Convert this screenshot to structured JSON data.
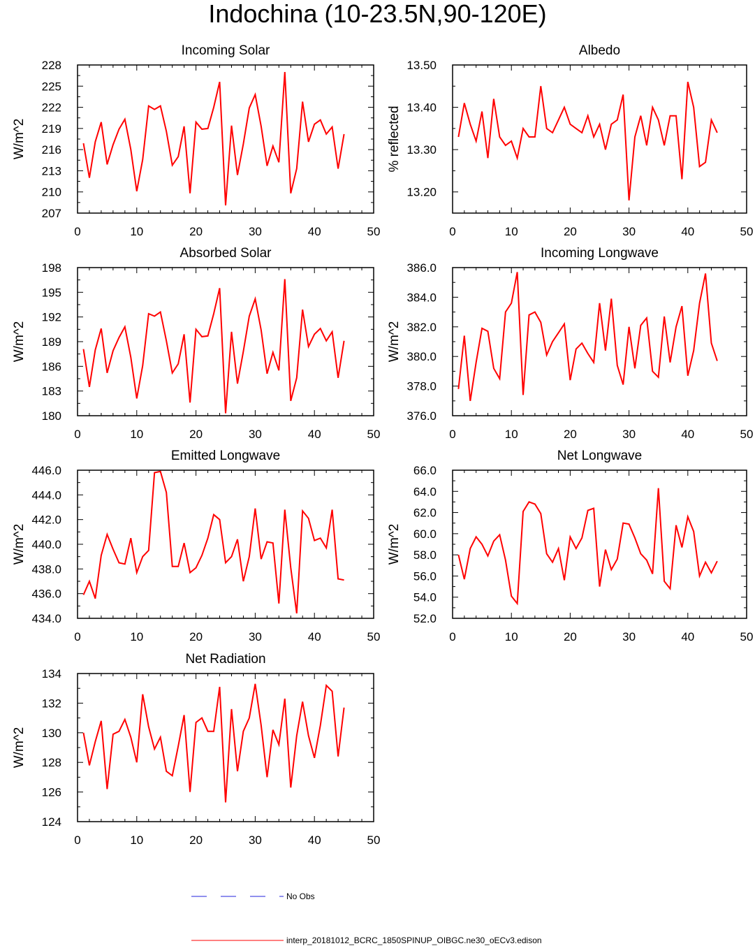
{
  "figure": {
    "title": "Indochina (10-23.5N,90-120E)"
  },
  "legend": [
    {
      "label": "No Obs",
      "color": "#0000ff",
      "dash": true
    },
    {
      "label": "interp_20181012_BCRC_1850SPINUP_OIBGC.ne30_oECv3.edison",
      "color": "#ff0000",
      "dash": false
    }
  ],
  "chart_data": [
    {
      "type": "line",
      "title": "Incoming Solar",
      "ylabel": "W/m^2",
      "xlim": [
        0,
        50
      ],
      "ylim": [
        207,
        228
      ],
      "xticks": [
        "0",
        "10",
        "20",
        "30",
        "40",
        "50"
      ],
      "yticks": [
        "207",
        "210",
        "213",
        "216",
        "219",
        "222",
        "225",
        "228"
      ],
      "series": [
        {
          "color": "#ff0000",
          "x_start": 1,
          "values": [
            216.9,
            212.0,
            217.1,
            219.9,
            213.9,
            216.7,
            218.9,
            220.3,
            216.0,
            210.1,
            214.6,
            222.2,
            221.7,
            222.2,
            218.6,
            213.8,
            215.0,
            219.3,
            209.8,
            219.9,
            218.9,
            219.0,
            222.0,
            225.6,
            208.1,
            219.4,
            212.4,
            216.8,
            221.9,
            223.8,
            219.3,
            213.7,
            216.5,
            214.2,
            227.0,
            209.8,
            213.3,
            222.8,
            217.1,
            219.6,
            220.2,
            218.2,
            219.2,
            213.3,
            218.2
          ]
        }
      ]
    },
    {
      "type": "line",
      "title": "Albedo",
      "ylabel": "% reflected",
      "xlim": [
        0,
        50
      ],
      "ylim": [
        13.15,
        13.5
      ],
      "xticks": [
        "0",
        "10",
        "20",
        "30",
        "40",
        "50"
      ],
      "yticks": [
        "13.20",
        "13.30",
        "13.40",
        "13.50"
      ],
      "series": [
        {
          "color": "#ff0000",
          "x_start": 1,
          "values": [
            13.33,
            13.41,
            13.36,
            13.32,
            13.39,
            13.28,
            13.42,
            13.33,
            13.31,
            13.32,
            13.28,
            13.35,
            13.33,
            13.33,
            13.45,
            13.35,
            13.34,
            13.37,
            13.4,
            13.36,
            13.35,
            13.34,
            13.38,
            13.33,
            13.36,
            13.3,
            13.36,
            13.37,
            13.43,
            13.18,
            13.33,
            13.38,
            13.31,
            13.4,
            13.37,
            13.31,
            13.38,
            13.38,
            13.23,
            13.46,
            13.4,
            13.26,
            13.27,
            13.37,
            13.34
          ]
        }
      ]
    },
    {
      "type": "line",
      "title": "Absorbed Solar",
      "ylabel": "W/m^2",
      "xlim": [
        0,
        50
      ],
      "ylim": [
        180,
        198
      ],
      "xticks": [
        "0",
        "10",
        "20",
        "30",
        "40",
        "50"
      ],
      "yticks": [
        "180",
        "183",
        "186",
        "189",
        "192",
        "195",
        "198"
      ],
      "series": [
        {
          "color": "#ff0000",
          "x_start": 1,
          "values": [
            188.1,
            183.5,
            188.0,
            190.6,
            185.2,
            187.9,
            189.5,
            190.8,
            187.1,
            182.1,
            186.1,
            192.4,
            192.1,
            192.6,
            189.1,
            185.2,
            186.3,
            189.9,
            181.6,
            190.5,
            189.6,
            189.7,
            192.4,
            195.5,
            180.3,
            190.2,
            183.9,
            187.8,
            192.1,
            194.2,
            190.4,
            185.1,
            187.7,
            185.5,
            196.6,
            181.8,
            184.6,
            192.9,
            188.4,
            189.9,
            190.6,
            189.1,
            190.2,
            184.6,
            189.1
          ]
        }
      ]
    },
    {
      "type": "line",
      "title": "Incoming Longwave",
      "ylabel": "W/m^2",
      "xlim": [
        0,
        50
      ],
      "ylim": [
        376.0,
        386.0
      ],
      "xticks": [
        "0",
        "10",
        "20",
        "30",
        "40",
        "50"
      ],
      "yticks": [
        "376.0",
        "378.0",
        "380.0",
        "382.0",
        "384.0",
        "386.0"
      ],
      "series": [
        {
          "color": "#ff0000",
          "x_start": 1,
          "values": [
            377.8,
            381.4,
            377.0,
            379.6,
            381.9,
            381.7,
            379.2,
            378.5,
            383.0,
            383.6,
            385.7,
            377.4,
            382.8,
            383.0,
            382.3,
            380.1,
            381.0,
            381.6,
            382.2,
            378.4,
            380.5,
            380.9,
            380.2,
            379.6,
            383.6,
            380.4,
            383.9,
            379.4,
            378.1,
            382.0,
            379.2,
            382.1,
            382.6,
            379.0,
            378.6,
            382.7,
            379.6,
            382.0,
            383.4,
            378.7,
            380.4,
            383.6,
            385.6,
            380.9,
            379.7
          ]
        }
      ]
    },
    {
      "type": "line",
      "title": "Emitted Longwave",
      "ylabel": "W/m^2",
      "xlim": [
        0,
        50
      ],
      "ylim": [
        434.0,
        446.0
      ],
      "xticks": [
        "0",
        "10",
        "20",
        "30",
        "40",
        "50"
      ],
      "yticks": [
        "434.0",
        "436.0",
        "438.0",
        "440.0",
        "442.0",
        "444.0",
        "446.0"
      ],
      "series": [
        {
          "color": "#ff0000",
          "x_start": 1,
          "values": [
            435.9,
            437.0,
            435.6,
            439.1,
            440.8,
            439.6,
            438.5,
            438.4,
            440.5,
            437.7,
            439.0,
            439.5,
            445.8,
            445.9,
            444.2,
            438.2,
            438.2,
            440.1,
            437.7,
            438.1,
            439.1,
            440.5,
            442.4,
            442.0,
            438.5,
            439.0,
            440.4,
            437.0,
            439.0,
            442.9,
            438.8,
            440.2,
            440.1,
            435.2,
            442.8,
            438.1,
            434.4,
            442.7,
            442.1,
            440.3,
            440.5,
            439.7,
            442.8,
            437.2,
            437.1
          ]
        }
      ]
    },
    {
      "type": "line",
      "title": "Net Longwave",
      "ylabel": "W/m^2",
      "xlim": [
        0,
        50
      ],
      "ylim": [
        52.0,
        66.0
      ],
      "xticks": [
        "0",
        "10",
        "20",
        "30",
        "40",
        "50"
      ],
      "yticks": [
        "52.0",
        "54.0",
        "56.0",
        "58.0",
        "60.0",
        "62.0",
        "64.0",
        "66.0"
      ],
      "series": [
        {
          "color": "#ff0000",
          "x_start": 1,
          "values": [
            58.0,
            55.7,
            58.6,
            59.7,
            59.0,
            57.9,
            59.3,
            59.9,
            57.5,
            54.1,
            53.4,
            62.1,
            63.0,
            62.8,
            61.9,
            58.1,
            57.3,
            58.6,
            55.6,
            59.7,
            58.6,
            59.6,
            62.2,
            62.4,
            55.0,
            58.5,
            56.6,
            57.6,
            61.0,
            60.9,
            59.6,
            58.1,
            57.5,
            56.2,
            64.3,
            55.5,
            54.8,
            60.8,
            58.7,
            61.6,
            60.2,
            56.0,
            57.3,
            56.3,
            57.4
          ]
        }
      ]
    },
    {
      "type": "line",
      "title": "Net Radiation",
      "ylabel": "W/m^2",
      "xlim": [
        0,
        50
      ],
      "ylim": [
        124,
        134
      ],
      "xticks": [
        "0",
        "10",
        "20",
        "30",
        "40",
        "50"
      ],
      "yticks": [
        "124",
        "126",
        "128",
        "130",
        "132",
        "134"
      ],
      "series": [
        {
          "color": "#ff0000",
          "x_start": 1,
          "values": [
            130.0,
            127.8,
            129.4,
            130.8,
            126.2,
            129.9,
            130.1,
            130.9,
            129.7,
            128.0,
            132.6,
            130.4,
            128.9,
            129.7,
            127.4,
            127.1,
            129.1,
            131.2,
            126.0,
            130.7,
            131.0,
            130.1,
            130.1,
            133.1,
            125.3,
            131.6,
            127.4,
            130.1,
            131.0,
            133.3,
            130.5,
            127.0,
            130.2,
            129.2,
            132.3,
            126.3,
            129.8,
            132.1,
            129.8,
            128.3,
            130.5,
            133.2,
            132.8,
            128.4,
            131.7
          ]
        }
      ]
    }
  ]
}
